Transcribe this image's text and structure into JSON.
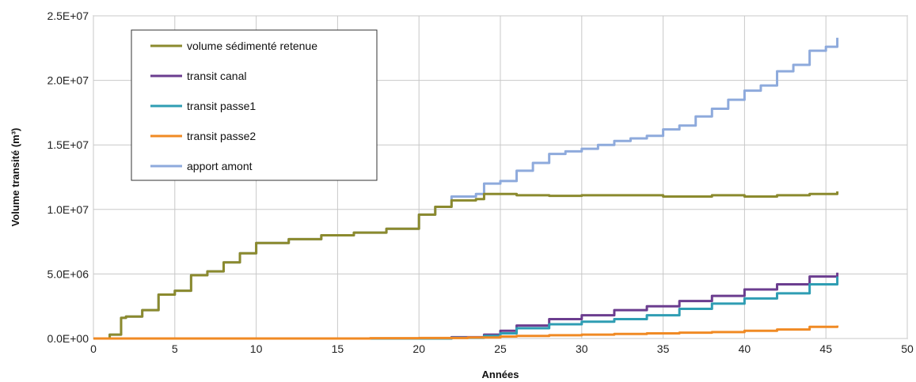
{
  "chart_data": {
    "type": "line",
    "title": "",
    "xlabel": "Années",
    "ylabel": "Volume transité (m³)",
    "xlim": [
      0,
      50
    ],
    "ylim": [
      0,
      25000000
    ],
    "x_ticks": [
      "0",
      "5",
      "10",
      "15",
      "20",
      "25",
      "30",
      "35",
      "40",
      "45",
      "50"
    ],
    "y_ticks": [
      "0.0E+00",
      "5.0E+06",
      "1.0E+07",
      "1.5E+07",
      "2.0E+07",
      "2.5E+07"
    ],
    "grid": true,
    "legend_position": "top-left",
    "series": [
      {
        "name": "volume sédimenté retenue",
        "color": "#8b8a2e",
        "x": [
          0.7,
          1,
          1.7,
          2,
          3,
          4,
          5,
          6,
          7,
          8,
          9,
          10,
          12,
          14,
          16,
          18,
          20,
          21,
          22,
          23.5,
          24,
          26,
          28,
          30,
          32,
          35,
          38,
          40,
          42,
          44,
          45.7
        ],
        "y": [
          0,
          300000,
          1600000,
          1700000,
          2200000,
          3400000,
          3700000,
          4900000,
          5200000,
          5900000,
          6600000,
          7400000,
          7700000,
          8000000,
          8200000,
          8500000,
          9600000,
          10200000,
          10700000,
          10800000,
          11200000,
          11100000,
          11050000,
          11100000,
          11100000,
          11000000,
          11100000,
          11000000,
          11100000,
          11200000,
          11400000
        ]
      },
      {
        "name": "transit canal",
        "color": "#6b3d8f",
        "x": [
          0,
          20,
          22,
          24,
          25,
          26,
          28,
          30,
          32,
          34,
          36,
          38,
          40,
          42,
          44,
          45.7
        ],
        "y": [
          0,
          0,
          100000,
          300000,
          600000,
          1000000,
          1500000,
          1800000,
          2200000,
          2500000,
          2900000,
          3300000,
          3800000,
          4200000,
          4800000,
          5100000
        ]
      },
      {
        "name": "transit passe1",
        "color": "#2f9db3",
        "x": [
          0,
          20,
          22,
          24,
          25,
          26,
          28,
          30,
          32,
          34,
          36,
          38,
          40,
          42,
          44,
          45.7
        ],
        "y": [
          0,
          0,
          50000,
          200000,
          400000,
          800000,
          1100000,
          1300000,
          1500000,
          1800000,
          2300000,
          2700000,
          3100000,
          3500000,
          4200000,
          4800000
        ]
      },
      {
        "name": "transit passe2",
        "color": "#f08a24",
        "x": [
          0,
          17,
          20,
          23,
          25,
          26,
          28,
          30,
          32,
          34,
          36,
          38,
          40,
          42,
          44,
          45.7
        ],
        "y": [
          0,
          20000,
          40000,
          80000,
          150000,
          200000,
          250000,
          300000,
          350000,
          400000,
          450000,
          500000,
          600000,
          700000,
          900000,
          1000000
        ]
      },
      {
        "name": "apport amont",
        "color": "#8eaadc",
        "x": [
          0.7,
          1,
          1.7,
          2,
          3,
          4,
          5,
          6,
          7,
          8,
          9,
          10,
          12,
          14,
          16,
          18,
          20,
          21,
          22,
          23.5,
          24,
          25,
          26,
          27,
          28,
          29,
          30,
          31,
          32,
          33,
          34,
          35,
          36,
          37,
          38,
          39,
          40,
          41,
          42,
          43,
          44,
          45,
          45.7
        ],
        "y": [
          0,
          300000,
          1600000,
          1700000,
          2200000,
          3400000,
          3700000,
          4900000,
          5200000,
          5900000,
          6600000,
          7400000,
          7700000,
          8000000,
          8200000,
          8500000,
          9600000,
          10200000,
          11000000,
          11200000,
          12000000,
          12200000,
          13000000,
          13600000,
          14300000,
          14500000,
          14700000,
          15000000,
          15300000,
          15500000,
          15700000,
          16200000,
          16500000,
          17200000,
          17800000,
          18500000,
          19200000,
          19600000,
          20700000,
          21200000,
          22300000,
          22600000,
          23300000
        ]
      }
    ]
  }
}
